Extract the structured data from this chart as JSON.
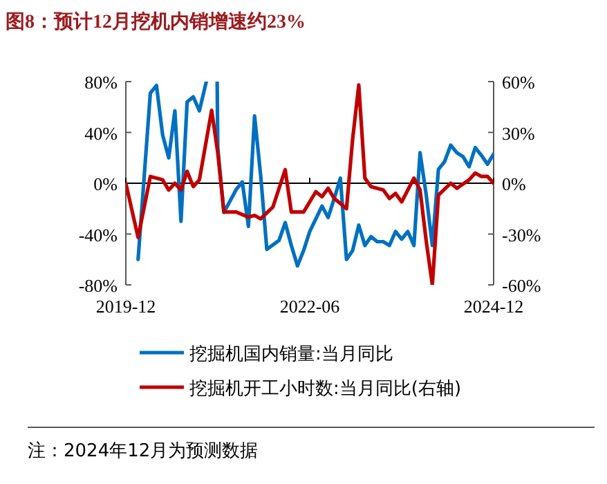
{
  "chart_data": {
    "type": "line",
    "title": "图8：预计12月挖机内销增速约23%",
    "xlim": [
      "2019-12",
      "2024-12"
    ],
    "xticks": [
      "2019-12",
      "2022-06",
      "2024-12"
    ],
    "ylim": [
      -80,
      80
    ],
    "yticks": [
      {
        "value": -80,
        "label": "-80%"
      },
      {
        "value": -40,
        "label": "-40%"
      },
      {
        "value": 0,
        "label": "0%"
      },
      {
        "value": 40,
        "label": "40%"
      },
      {
        "value": 80,
        "label": "80%"
      }
    ],
    "y2lim": [
      -60,
      60
    ],
    "y2ticks": [
      {
        "value": -60,
        "label": "-60%"
      },
      {
        "value": -30,
        "label": "-30%"
      },
      {
        "value": 0,
        "label": "0%"
      },
      {
        "value": 30,
        "label": "30%"
      },
      {
        "value": 60,
        "label": "60%"
      }
    ],
    "legend": "bottom",
    "ref_lines": [
      {
        "axis": "y",
        "value": 0,
        "color": "#000000"
      }
    ],
    "line_style": "solid",
    "marker": "none",
    "series": [
      {
        "name": "挖掘机国内销量:当月同比",
        "color": "#0070c0",
        "x": [
          "2020-02",
          "2020-04",
          "2020-05",
          "2020-06",
          "2020-07",
          "2020-08",
          "2020-09",
          "2020-10",
          "2020-11",
          "2020-12",
          "2021-01-05"
        ],
        "values": [
          -60,
          71,
          77,
          38,
          20,
          57,
          -30,
          64,
          68,
          57,
          80
        ]
      },
      {
        "color": "#0070c0",
        "x": [
          "2021-02-28",
          "2021-03",
          "2021-04",
          "2021-06",
          "2021-07",
          "2021-08",
          "2021-09",
          "2021-10",
          "2021-11",
          "2022-01",
          "2022-02",
          "2022-03",
          "2022-04",
          "2022-05",
          "2022-06",
          "2022-08",
          "2022-09",
          "2022-10",
          "2022-11",
          "2022-12",
          "2023-01",
          "2023-02",
          "2023-03",
          "2023-04",
          "2023-05",
          "2023-06",
          "2023-07",
          "2023-08",
          "2023-09",
          "2023-10",
          "2023-11",
          "2023-12",
          "2024-01",
          "2024-02",
          "2024-03",
          "2024-04",
          "2024-05",
          "2024-06",
          "2024-07",
          "2024-08",
          "2024-09",
          "2024-10",
          "2024-11",
          "2024-12"
        ],
        "values": [
          80,
          28,
          -23,
          -5,
          1,
          -34,
          53,
          6,
          -52,
          -45,
          -31,
          -49,
          -65,
          -53,
          -38,
          -18,
          -27,
          -12,
          4,
          -60,
          -53,
          -33,
          -49,
          -42,
          -46,
          -46,
          -49,
          -38,
          -44,
          -38,
          -49,
          24,
          -9,
          -49,
          11,
          17,
          30,
          24,
          21,
          13,
          28,
          22,
          15,
          23
        ]
      },
      {
        "name": "挖掘机开工小时数:当月同比(右轴)",
        "color": "#c00000",
        "axis": "y2",
        "x": [
          "2019-12",
          "2020-02",
          "2020-04",
          "2020-06",
          "2020-07",
          "2020-08",
          "2020-09",
          "2020-10",
          "2020-11",
          "2020-12",
          "2021-02",
          "2021-03",
          "2021-04",
          "2021-06",
          "2021-08",
          "2021-09",
          "2021-10",
          "2021-12",
          "2022-02",
          "2022-03",
          "2022-05",
          "2022-07",
          "2022-08",
          "2022-09",
          "2022-10",
          "2022-12",
          "2023-01",
          "2023-02",
          "2023-03",
          "2023-04",
          "2023-06",
          "2023-07",
          "2023-08",
          "2023-09",
          "2023-11",
          "2023-12",
          "2024-01",
          "2024-02",
          "2024-03",
          "2024-05",
          "2024-06",
          "2024-08",
          "2024-09",
          "2024-10",
          "2024-11",
          "2024-12"
        ],
        "values": [
          0,
          -32,
          4,
          2,
          -4,
          0,
          -4,
          7,
          -2,
          2,
          43,
          18,
          -17,
          -17,
          -20,
          -19,
          -21,
          -14,
          8,
          -17,
          -17,
          -5,
          -8,
          -3,
          -9,
          -15,
          26,
          58,
          3,
          -2,
          -4,
          -9,
          -6,
          -11,
          3,
          -4,
          -34,
          -60,
          -7,
          0,
          -3,
          2,
          6,
          4,
          4,
          0
        ]
      }
    ],
    "annotations": [
      "注：2024年12月为预测数据"
    ]
  }
}
